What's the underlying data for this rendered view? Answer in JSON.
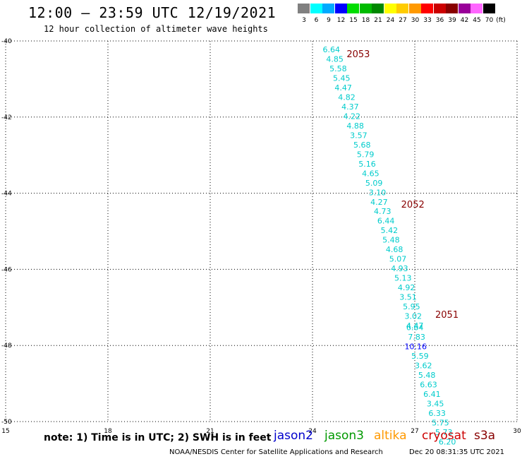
{
  "header": {
    "title": "12:00 – 23:59 UTC 12/19/2021",
    "subtitle": "12 hour collection of altimeter wave heights"
  },
  "legend": {
    "unit": "(ft)",
    "bins": [
      {
        "label": "3",
        "color": "#808080"
      },
      {
        "label": "6",
        "color": "#00ffff"
      },
      {
        "label": "9",
        "color": "#00aaff"
      },
      {
        "label": "12",
        "color": "#0000ff"
      },
      {
        "label": "15",
        "color": "#00dd00"
      },
      {
        "label": "18",
        "color": "#00bb00"
      },
      {
        "label": "21",
        "color": "#008800"
      },
      {
        "label": "24",
        "color": "#ffff00"
      },
      {
        "label": "27",
        "color": "#ffcc00"
      },
      {
        "label": "30",
        "color": "#ff9900"
      },
      {
        "label": "33",
        "color": "#ff0000"
      },
      {
        "label": "36",
        "color": "#cc0000"
      },
      {
        "label": "39",
        "color": "#880000"
      },
      {
        "label": "42",
        "color": "#990099"
      },
      {
        "label": "45",
        "color": "#ff66ff"
      },
      {
        "label": "70",
        "color": "#000000"
      }
    ]
  },
  "map": {
    "lon_ticks": [
      "15",
      "18",
      "21",
      "24",
      "27",
      "30"
    ],
    "lat_ticks": [
      "-40",
      "-42",
      "-44",
      "-46",
      "-48",
      "-50"
    ],
    "lon_range": [
      15,
      30
    ],
    "lat_range": [
      -40,
      -50
    ],
    "pass_labels": [
      {
        "text": "2053",
        "lon": 25.0,
        "lat": -40.35
      },
      {
        "text": "2052",
        "lon": 26.6,
        "lat": -44.3
      },
      {
        "text": "2051",
        "lon": 27.6,
        "lat": -47.2
      }
    ],
    "pass_label_color": "#880000",
    "readings": [
      {
        "v": "6.64",
        "lon": 24.3,
        "lat": -40.3
      },
      {
        "v": "4.85",
        "lon": 24.4,
        "lat": -40.55
      },
      {
        "v": "5.58",
        "lon": 24.5,
        "lat": -40.8
      },
      {
        "v": "5.45",
        "lon": 24.6,
        "lat": -41.05
      },
      {
        "v": "4.47",
        "lon": 24.65,
        "lat": -41.3
      },
      {
        "v": "4.82",
        "lon": 24.75,
        "lat": -41.55
      },
      {
        "v": "4.37",
        "lon": 24.85,
        "lat": -41.8
      },
      {
        "v": "4.22",
        "lon": 24.9,
        "lat": -42.05
      },
      {
        "v": "4.88",
        "lon": 25.0,
        "lat": -42.3
      },
      {
        "v": "3.57",
        "lon": 25.1,
        "lat": -42.55
      },
      {
        "v": "5.68",
        "lon": 25.2,
        "lat": -42.8
      },
      {
        "v": "5.79",
        "lon": 25.3,
        "lat": -43.05
      },
      {
        "v": "5.16",
        "lon": 25.35,
        "lat": -43.3
      },
      {
        "v": "4.65",
        "lon": 25.45,
        "lat": -43.55
      },
      {
        "v": "5.09",
        "lon": 25.55,
        "lat": -43.8
      },
      {
        "v": "3.10",
        "lon": 25.65,
        "lat": -44.05
      },
      {
        "v": "4.27",
        "lon": 25.7,
        "lat": -44.3
      },
      {
        "v": "4.73",
        "lon": 25.8,
        "lat": -44.55
      },
      {
        "v": "6.44",
        "lon": 25.9,
        "lat": -44.8
      },
      {
        "v": "5.42",
        "lon": 26.0,
        "lat": -45.05
      },
      {
        "v": "5.48",
        "lon": 26.05,
        "lat": -45.3
      },
      {
        "v": "4.68",
        "lon": 26.15,
        "lat": -45.55
      },
      {
        "v": "5.07",
        "lon": 26.25,
        "lat": -45.8
      },
      {
        "v": "4.93",
        "lon": 26.3,
        "lat": -46.05
      },
      {
        "v": "5.13",
        "lon": 26.4,
        "lat": -46.3
      },
      {
        "v": "4.92",
        "lon": 26.5,
        "lat": -46.55
      },
      {
        "v": "3.51",
        "lon": 26.55,
        "lat": -46.8
      },
      {
        "v": "5.95",
        "lon": 26.65,
        "lat": -47.05
      },
      {
        "v": "3.02",
        "lon": 26.7,
        "lat": -47.3
      },
      {
        "v": "4.47",
        "lon": 26.75,
        "lat": -47.55
      },
      {
        "v": "6.64",
        "lon": 26.75,
        "lat": -47.6
      },
      {
        "v": "7.83",
        "lon": 26.8,
        "lat": -47.85
      },
      {
        "v": "10.16",
        "lon": 26.7,
        "lat": -48.1,
        "color": "#0000ff"
      },
      {
        "v": "5.59",
        "lon": 26.9,
        "lat": -48.35
      },
      {
        "v": "3.62",
        "lon": 27.0,
        "lat": -48.6
      },
      {
        "v": "5.48",
        "lon": 27.1,
        "lat": -48.85
      },
      {
        "v": "6.63",
        "lon": 27.15,
        "lat": -49.1
      },
      {
        "v": "6.41",
        "lon": 27.25,
        "lat": -49.35
      },
      {
        "v": "3.45",
        "lon": 27.35,
        "lat": -49.6
      },
      {
        "v": "6.33",
        "lon": 27.4,
        "lat": -49.85
      },
      {
        "v": "5.75",
        "lon": 27.5,
        "lat": -50.1
      },
      {
        "v": "5.73",
        "lon": 27.6,
        "lat": -50.35
      },
      {
        "v": "6.20",
        "lon": 27.7,
        "lat": -50.6
      }
    ],
    "reading_color": "#00cccc"
  },
  "note": "note: 1) Time is in UTC; 2) SWH is in feet",
  "satellites": [
    {
      "name": "jason2",
      "color": "#0000cc"
    },
    {
      "name": "jason3",
      "color": "#009900"
    },
    {
      "name": "altika",
      "color": "#ff9900"
    },
    {
      "name": "cryosat",
      "color": "#cc0000"
    },
    {
      "name": "s3a",
      "color": "#880000"
    }
  ],
  "footer": {
    "credit": "NOAA/NESDIS Center for Satellite Applications and Research",
    "timestamp": "Dec 20 08:31:35 UTC 2021"
  }
}
